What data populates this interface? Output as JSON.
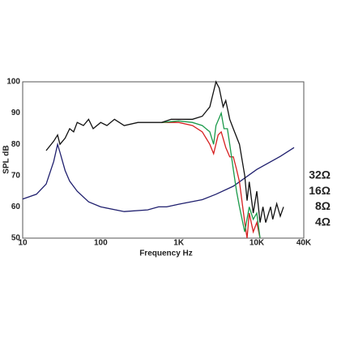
{
  "chart_data": {
    "type": "line",
    "x_label": "Frequency Hz",
    "y_label": "SPL dB",
    "xscale": "log",
    "y2scale": "log",
    "grid": true,
    "xlim": [
      10,
      40000
    ],
    "xticks": [
      10,
      100,
      {
        "value": 1000,
        "label": "1K"
      },
      {
        "value": 10000,
        "label": "10K"
      },
      {
        "value": 40000,
        "label": "40K"
      }
    ],
    "ylim": [
      50,
      100
    ],
    "yticks": [
      50,
      60,
      70,
      80,
      90,
      100
    ],
    "y2lim": [
      2,
      2048
    ],
    "y2ticks": [
      {
        "value": 32,
        "label": "32Ω"
      },
      {
        "value": 16,
        "label": "16Ω"
      },
      {
        "value": 8,
        "label": "8Ω"
      },
      {
        "value": 4,
        "label": "4Ω"
      }
    ],
    "series": [
      {
        "color": "#1f1f6e",
        "axis": "y2",
        "x": [
          10,
          15,
          20,
          25,
          28,
          30,
          35,
          40,
          50,
          70,
          100,
          200,
          400,
          550,
          700,
          1000,
          2000,
          3000,
          5000,
          10000,
          20000,
          30000
        ],
        "values": [
          11.3,
          14,
          22,
          60,
          128,
          90,
          40,
          25,
          16,
          10,
          8,
          6.5,
          7,
          8,
          8,
          9,
          11,
          14,
          20,
          42,
          75,
          111
        ]
      },
      {
        "color": "#d62020",
        "x": [
          600,
          1000,
          1500,
          2000,
          2500,
          2800,
          3200,
          3500,
          4000,
          4500,
          5000,
          5500,
          6000,
          7000,
          7500,
          8000,
          9000,
          10000,
          11000
        ],
        "values": [
          87,
          87,
          86,
          84,
          80,
          77,
          83,
          84,
          79,
          76,
          76,
          72,
          68,
          55,
          50,
          58,
          52,
          55,
          50
        ]
      },
      {
        "color": "#1a9a4a",
        "x": [
          600,
          1000,
          1500,
          2000,
          2500,
          2800,
          3000,
          3500,
          3800,
          4200,
          4500,
          5000,
          5500,
          6000,
          7000,
          8000,
          9000,
          10000,
          11000
        ],
        "values": [
          87,
          87.5,
          87,
          86,
          84,
          80,
          86,
          90,
          85,
          85,
          80,
          72,
          65,
          60,
          52,
          60,
          56,
          58,
          50
        ]
      },
      {
        "color": "#111111",
        "x": [
          20,
          25,
          28,
          30,
          35,
          40,
          45,
          50,
          60,
          70,
          80,
          100,
          120,
          150,
          200,
          300,
          400,
          500,
          600,
          800,
          1000,
          1500,
          2000,
          2500,
          3000,
          3300,
          3700,
          4000,
          4500,
          5000,
          6000,
          7000,
          7500,
          8000,
          9000,
          10000,
          11000,
          12000,
          13000,
          15000,
          16000,
          18000,
          20000,
          22000
        ],
        "values": [
          78,
          81,
          83,
          80,
          82,
          85,
          84,
          87,
          86,
          88,
          85,
          87,
          86,
          88,
          86,
          87,
          87,
          87,
          87,
          88,
          88,
          88,
          89,
          92,
          100,
          98,
          92,
          94,
          88,
          85,
          80,
          70,
          62,
          68,
          58,
          65,
          55,
          60,
          55,
          60,
          56,
          61,
          57,
          60
        ]
      }
    ]
  }
}
